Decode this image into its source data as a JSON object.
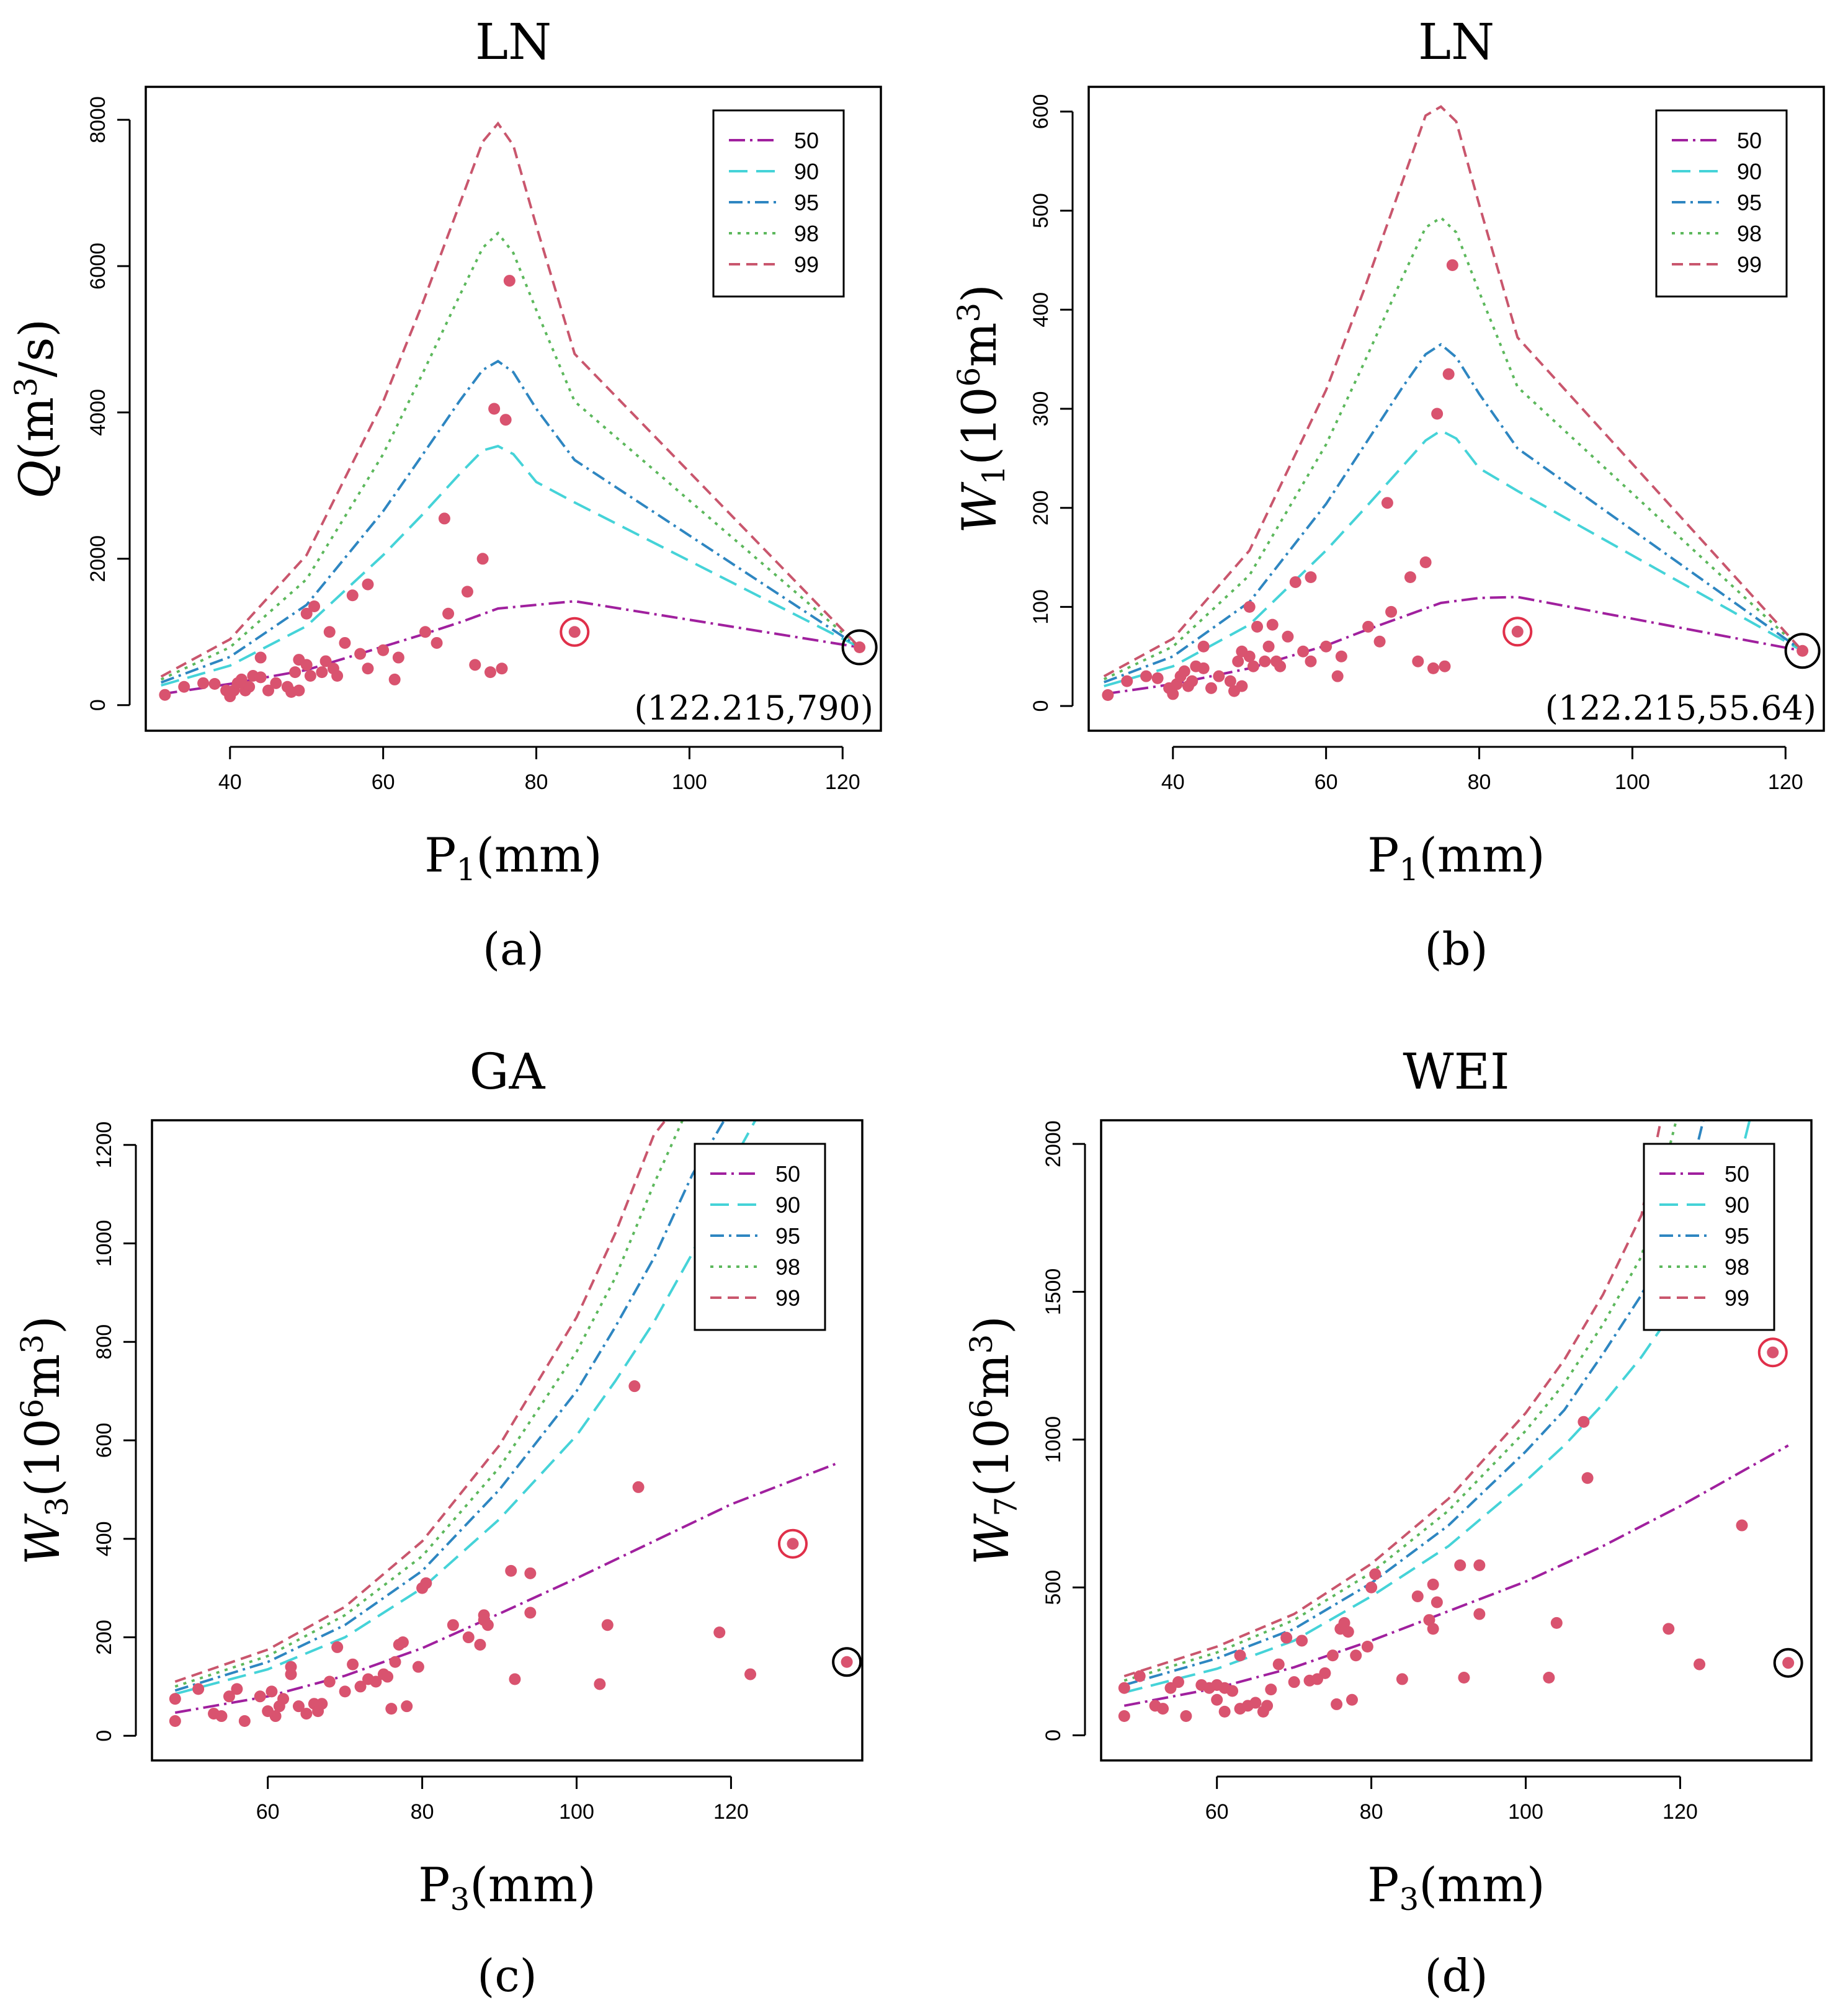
{
  "figure": {
    "panel_labels": [
      "(a)",
      "(b)",
      "(c)",
      "(d)"
    ]
  },
  "styles": {
    "point_color": "#d9536f",
    "circle_red": "#e0304a",
    "circle_black": "#000000",
    "series_colors": {
      "50": "#a0209e",
      "90": "#45d3d8",
      "95": "#2e86c1",
      "98": "#5cb85c",
      "99": "#c9566d"
    }
  },
  "chart_data": [
    {
      "type": "line+scatter",
      "title": "LN",
      "xlabel_main": "P",
      "xlabel_sub": "1",
      "xlabel_tail": "(mm)",
      "ylabel_main": "Q",
      "ylabel_tail": "(m",
      "ylabel_sup": "3",
      "ylabel_end": "/s)",
      "xlim": [
        29,
        125
      ],
      "ylim": [
        -350,
        8450
      ],
      "xticks": [
        40,
        60,
        80,
        100,
        120
      ],
      "yticks": [
        0,
        2000,
        4000,
        6000,
        8000
      ],
      "legend_labels": [
        "50",
        "90",
        "95",
        "98",
        "99"
      ],
      "series": [
        {
          "name": "50",
          "x": [
            31,
            40,
            50,
            60,
            65,
            70,
            75,
            80,
            85,
            122.2
          ],
          "y": [
            150,
            290,
            480,
            800,
            960,
            1130,
            1320,
            1370,
            1420,
            790
          ]
        },
        {
          "name": "90",
          "x": [
            31,
            40,
            50,
            60,
            65,
            70,
            73,
            75,
            77,
            80,
            85,
            122.2
          ],
          "y": [
            270,
            540,
            1080,
            2050,
            2590,
            3160,
            3480,
            3540,
            3430,
            3050,
            2770,
            790
          ]
        },
        {
          "name": "95",
          "x": [
            31,
            40,
            50,
            60,
            65,
            70,
            73,
            75,
            77,
            80,
            85,
            122.2
          ],
          "y": [
            310,
            660,
            1370,
            2650,
            3400,
            4160,
            4580,
            4700,
            4550,
            4050,
            3350,
            790
          ]
        },
        {
          "name": "98",
          "x": [
            31,
            40,
            50,
            60,
            65,
            70,
            73,
            75,
            77,
            80,
            85,
            122.2
          ],
          "y": [
            350,
            790,
            1720,
            3430,
            4500,
            5600,
            6250,
            6450,
            6180,
            5400,
            4150,
            790
          ]
        },
        {
          "name": "99",
          "x": [
            31,
            40,
            50,
            60,
            65,
            70,
            73,
            75,
            77,
            80,
            85,
            122.2
          ],
          "y": [
            390,
            900,
            2050,
            4150,
            5450,
            6850,
            7700,
            7950,
            7650,
            6550,
            4800,
            790
          ]
        }
      ],
      "points": {
        "x": [
          31.5,
          34,
          36.5,
          38,
          39.5,
          40,
          40.5,
          41,
          41.5,
          42,
          42.5,
          43,
          44,
          44,
          45,
          46,
          47.5,
          48,
          48.5,
          49,
          49,
          50,
          50,
          50.5,
          51,
          52,
          52.5,
          53,
          53.5,
          54,
          55,
          56,
          57,
          58,
          58,
          60,
          61.5,
          62,
          65.5,
          67,
          68,
          68.5,
          71,
          72,
          73,
          74,
          74.5,
          75.5,
          76,
          76.5
        ],
        "y": [
          140,
          250,
          300,
          290,
          200,
          120,
          200,
          300,
          350,
          200,
          250,
          400,
          380,
          650,
          200,
          300,
          250,
          180,
          450,
          620,
          200,
          550,
          1250,
          400,
          1350,
          450,
          600,
          1000,
          500,
          400,
          850,
          1500,
          700,
          1650,
          500,
          750,
          350,
          650,
          1000,
          850,
          2550,
          1250,
          1550,
          550,
          2000,
          450,
          4050,
          500,
          3900,
          5800
        ]
      },
      "circled_red": [
        85,
        1000
      ],
      "circled_black": [
        122.215,
        790
      ],
      "annotation": "(122.215,790)"
    },
    {
      "type": "line+scatter",
      "title": "LN",
      "xlabel_main": "P",
      "xlabel_sub": "1",
      "xlabel_tail": "(mm)",
      "ylabel_main": "W",
      "ylabel_sub": "1",
      "ylabel_tail": "(10",
      "ylabel_sup": "6",
      "ylabel_mid": "m",
      "ylabel_sup2": "3",
      "ylabel_end": ")",
      "xlim": [
        29,
        125
      ],
      "ylim": [
        -25,
        625
      ],
      "xticks": [
        40,
        60,
        80,
        100,
        120
      ],
      "yticks": [
        0,
        100,
        200,
        300,
        400,
        500,
        600
      ],
      "legend_labels": [
        "50",
        "90",
        "95",
        "98",
        "99"
      ],
      "series": [
        {
          "name": "50",
          "x": [
            31,
            40,
            50,
            60,
            65,
            70,
            75,
            80,
            85,
            122.2
          ],
          "y": [
            12,
            22,
            38,
            61,
            76,
            90,
            104,
            109,
            110,
            55.64
          ]
        },
        {
          "name": "90",
          "x": [
            31,
            40,
            50,
            60,
            65,
            70,
            73,
            75,
            77,
            80,
            85,
            122.2
          ],
          "y": [
            20,
            40,
            82,
            157,
            199,
            242,
            268,
            278,
            270,
            240,
            217,
            55.64
          ]
        },
        {
          "name": "95",
          "x": [
            31,
            40,
            50,
            60,
            65,
            70,
            73,
            75,
            77,
            80,
            85,
            122.2
          ],
          "y": [
            24,
            50,
            105,
            204,
            263,
            322,
            355,
            365,
            352,
            315,
            260,
            55.64
          ]
        },
        {
          "name": "98",
          "x": [
            31,
            40,
            50,
            60,
            65,
            70,
            73,
            75,
            77,
            80,
            85,
            122.2
          ],
          "y": [
            27,
            60,
            132,
            264,
            347,
            433,
            483,
            493,
            478,
            418,
            322,
            55.64
          ]
        },
        {
          "name": "99",
          "x": [
            31,
            40,
            50,
            60,
            65,
            70,
            73,
            75,
            77,
            80,
            85,
            122.2
          ],
          "y": [
            30,
            68,
            157,
            319,
            421,
            530,
            596,
            605,
            590,
            506,
            372,
            55.64
          ]
        }
      ],
      "points": {
        "x": [
          31.5,
          34,
          36.5,
          38,
          39.5,
          40,
          40.5,
          41,
          41.5,
          42,
          42.5,
          43,
          44,
          44,
          45,
          46,
          47.5,
          48,
          48.5,
          49,
          49,
          50,
          50,
          50.5,
          51,
          52,
          52.5,
          53,
          53.5,
          54,
          55,
          56,
          57,
          58,
          58,
          60,
          61.5,
          62,
          65.5,
          67,
          68,
          68.5,
          71,
          72,
          73,
          74,
          74.5,
          75.5,
          76,
          76.5
        ],
        "y": [
          11,
          25,
          30,
          28,
          18,
          12,
          22,
          30,
          35,
          20,
          25,
          40,
          38,
          60,
          18,
          30,
          25,
          15,
          45,
          55,
          20,
          50,
          100,
          40,
          80,
          45,
          60,
          82,
          45,
          40,
          70,
          125,
          55,
          130,
          45,
          60,
          30,
          50,
          80,
          65,
          205,
          95,
          130,
          45,
          145,
          38,
          295,
          40,
          335,
          445
        ]
      },
      "circled_red": [
        85,
        75
      ],
      "circled_black": [
        122.215,
        55.64
      ],
      "annotation": "(122.215,55.64)"
    },
    {
      "type": "line+scatter",
      "title": "GA",
      "xlabel_main": "P",
      "xlabel_sub": "3",
      "xlabel_tail": "(mm)",
      "ylabel_main": "W",
      "ylabel_sub": "3",
      "ylabel_tail": "(10",
      "ylabel_sup": "6",
      "ylabel_mid": "m",
      "ylabel_sup2": "3",
      "ylabel_end": ")",
      "xlim": [
        45,
        137
      ],
      "ylim": [
        -50,
        1250
      ],
      "xticks": [
        60,
        80,
        100,
        120
      ],
      "yticks": [
        0,
        200,
        400,
        600,
        800,
        1000,
        1200
      ],
      "legend_labels": [
        "50",
        "90",
        "95",
        "98",
        "99"
      ],
      "series": [
        {
          "name": "50",
          "x": [
            48,
            60,
            70,
            80,
            90,
            100,
            110,
            120,
            134
          ],
          "y": [
            47,
            80,
            122,
            178,
            248,
            320,
            395,
            470,
            555
          ]
        },
        {
          "name": "90",
          "x": [
            48,
            60,
            70,
            80,
            90,
            100,
            105,
            110,
            115,
            120,
            123.5
          ],
          "y": [
            85,
            135,
            200,
            300,
            440,
            610,
            720,
            840,
            980,
            1160,
            1260
          ]
        },
        {
          "name": "95",
          "x": [
            48,
            60,
            70,
            80,
            90,
            100,
            105,
            110,
            115,
            119.5
          ],
          "y": [
            92,
            150,
            225,
            335,
            500,
            700,
            830,
            970,
            1140,
            1260
          ]
        },
        {
          "name": "98",
          "x": [
            48,
            60,
            70,
            80,
            90,
            100,
            105,
            110,
            114
          ],
          "y": [
            100,
            162,
            245,
            365,
            545,
            780,
            930,
            1120,
            1260
          ]
        },
        {
          "name": "99",
          "x": [
            48,
            60,
            70,
            80,
            90,
            100,
            105,
            110,
            112
          ],
          "y": [
            110,
            175,
            262,
            395,
            590,
            850,
            1020,
            1220,
            1260
          ]
        }
      ],
      "points": {
        "x": [
          48,
          48,
          51,
          53,
          54,
          55,
          56,
          57,
          59,
          60,
          60.5,
          61,
          61.5,
          62,
          63,
          63,
          64,
          65,
          66,
          66.5,
          67,
          68,
          69,
          70,
          71,
          72,
          73,
          74,
          75,
          75.5,
          76,
          76.5,
          77,
          77.5,
          78,
          79.5,
          80,
          80.5,
          84,
          86,
          87.5,
          88,
          88,
          88.5,
          91.5,
          92,
          94,
          94,
          103,
          104,
          107.5,
          108,
          118.5,
          122.5
        ],
        "y": [
          30,
          75,
          95,
          45,
          40,
          80,
          95,
          30,
          80,
          50,
          90,
          40,
          60,
          75,
          125,
          140,
          60,
          45,
          65,
          50,
          65,
          110,
          180,
          90,
          145,
          100,
          115,
          110,
          125,
          120,
          55,
          150,
          185,
          190,
          60,
          140,
          300,
          310,
          225,
          200,
          185,
          245,
          235,
          225,
          335,
          115,
          250,
          330,
          105,
          225,
          710,
          505,
          210,
          125
        ]
      },
      "circled_red": [
        128,
        390
      ],
      "circled_black": [
        135,
        150
      ]
    },
    {
      "type": "line+scatter",
      "title": "WEI",
      "xlabel_main": "P",
      "xlabel_sub": "3",
      "xlabel_tail": "(mm)",
      "ylabel_main": "W",
      "ylabel_sub": "7",
      "ylabel_tail": "(10",
      "ylabel_sup": "6",
      "ylabel_mid": "m",
      "ylabel_sup2": "3",
      "ylabel_end": ")",
      "xlim": [
        45,
        137
      ],
      "ylim": [
        -85,
        2080
      ],
      "xticks": [
        60,
        80,
        100,
        120
      ],
      "yticks": [
        0,
        500,
        1000,
        1500,
        2000
      ],
      "legend_labels": [
        "50",
        "90",
        "95",
        "98",
        "99"
      ],
      "series": [
        {
          "name": "50",
          "x": [
            48,
            60,
            70,
            80,
            90,
            100,
            110,
            120,
            134
          ],
          "y": [
            100,
            160,
            230,
            320,
            420,
            520,
            640,
            775,
            980
          ]
        },
        {
          "name": "90",
          "x": [
            48,
            60,
            70,
            80,
            90,
            100,
            105,
            110,
            115,
            120,
            127,
            129
          ],
          "y": [
            145,
            225,
            320,
            470,
            640,
            860,
            980,
            1120,
            1280,
            1470,
            1870,
            2080
          ]
        },
        {
          "name": "95",
          "x": [
            48,
            60,
            70,
            80,
            90,
            100,
            105,
            110,
            115,
            120,
            123
          ],
          "y": [
            170,
            260,
            360,
            515,
            710,
            960,
            1100,
            1290,
            1490,
            1760,
            2080
          ]
        },
        {
          "name": "98",
          "x": [
            48,
            60,
            70,
            80,
            90,
            100,
            105,
            110,
            115,
            119.5
          ],
          "y": [
            185,
            280,
            390,
            550,
            760,
            1030,
            1190,
            1390,
            1620,
            2080
          ]
        },
        {
          "name": "99",
          "x": [
            48,
            60,
            70,
            80,
            90,
            100,
            105,
            110,
            115,
            117.5
          ],
          "y": [
            200,
            300,
            410,
            580,
            800,
            1090,
            1270,
            1490,
            1760,
            2080
          ]
        }
      ],
      "points": {
        "x": [
          48,
          48,
          50,
          52,
          53,
          54,
          55,
          56,
          58,
          59,
          60,
          60,
          61,
          61,
          62,
          63,
          63,
          64,
          65,
          66,
          66.5,
          67,
          68,
          69,
          70,
          71,
          72,
          73,
          74,
          75,
          75.5,
          76,
          76.5,
          77,
          77.5,
          78,
          79.5,
          80,
          80.5,
          84,
          86,
          87.5,
          88,
          88,
          88.5,
          91.5,
          92,
          94,
          94,
          103,
          104,
          107.5,
          108,
          118.5,
          122.5,
          128
        ],
        "y": [
          65,
          160,
          200,
          100,
          90,
          160,
          180,
          65,
          170,
          160,
          120,
          170,
          80,
          160,
          150,
          270,
          90,
          100,
          110,
          80,
          100,
          155,
          240,
          330,
          180,
          320,
          185,
          190,
          210,
          270,
          105,
          360,
          380,
          350,
          120,
          270,
          300,
          500,
          545,
          190,
          470,
          390,
          360,
          510,
          450,
          575,
          195,
          410,
          575,
          195,
          380,
          1060,
          870,
          360,
          240,
          710
        ]
      },
      "circled_red": [
        132,
        1295
      ],
      "circled_black": [
        134,
        245
      ]
    }
  ]
}
